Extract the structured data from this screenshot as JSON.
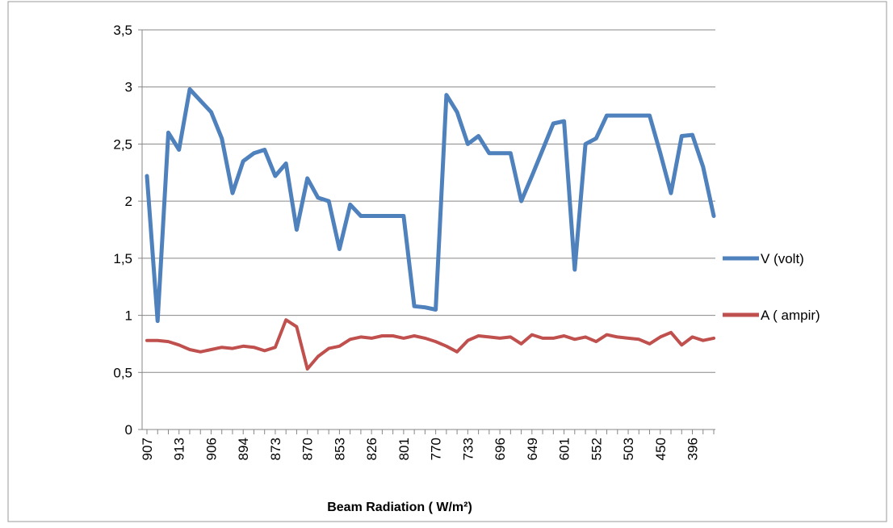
{
  "chart_data": {
    "type": "line",
    "x_label": "Beam Radiation ( W/m²)",
    "categories": [
      "907",
      null,
      null,
      "913",
      null,
      null,
      "906",
      null,
      null,
      "894",
      null,
      null,
      "873",
      null,
      null,
      "870",
      null,
      null,
      "853",
      null,
      null,
      "826",
      null,
      null,
      "801",
      null,
      null,
      "770",
      null,
      null,
      "733",
      null,
      null,
      "696",
      null,
      null,
      "649",
      null,
      null,
      "601",
      null,
      null,
      "552",
      null,
      null,
      "503",
      null,
      null,
      "450",
      null,
      null,
      "396",
      null,
      null
    ],
    "series": [
      {
        "name": "V (volt)",
        "color": "#4f81bd",
        "values": [
          2.22,
          0.95,
          2.6,
          2.45,
          2.98,
          2.88,
          2.78,
          2.55,
          2.07,
          2.35,
          2.42,
          2.45,
          2.22,
          2.33,
          1.75,
          2.2,
          2.03,
          2.0,
          1.58,
          1.97,
          1.87,
          1.87,
          1.87,
          1.87,
          1.87,
          1.08,
          1.07,
          1.05,
          2.93,
          2.78,
          2.5,
          2.57,
          2.42,
          2.42,
          2.42,
          2.0,
          2.22,
          2.45,
          2.68,
          2.7,
          1.4,
          2.5,
          2.55,
          2.75,
          2.75,
          2.75,
          2.75,
          2.75,
          2.42,
          2.07,
          2.57,
          2.58,
          2.3,
          1.87
        ]
      },
      {
        "name": "A ( ampir)",
        "color": "#c0504d",
        "values": [
          0.78,
          0.78,
          0.77,
          0.74,
          0.7,
          0.68,
          0.7,
          0.72,
          0.71,
          0.73,
          0.72,
          0.69,
          0.72,
          0.96,
          0.9,
          0.53,
          0.64,
          0.71,
          0.73,
          0.79,
          0.81,
          0.8,
          0.82,
          0.82,
          0.8,
          0.82,
          0.8,
          0.77,
          0.73,
          0.68,
          0.78,
          0.82,
          0.81,
          0.8,
          0.81,
          0.75,
          0.83,
          0.8,
          0.8,
          0.82,
          0.79,
          0.81,
          0.77,
          0.83,
          0.81,
          0.8,
          0.79,
          0.75,
          0.81,
          0.85,
          0.74,
          0.81,
          0.78,
          0.8
        ]
      }
    ],
    "ylim": [
      0,
      3.5
    ],
    "yticks": [
      0,
      {
        "value": 0.5,
        "label": "0,5"
      },
      1,
      {
        "value": 1.5,
        "label": "1,5"
      },
      2,
      {
        "value": 2.5,
        "label": "2,5"
      },
      3,
      {
        "value": 3.5,
        "label": "3,5"
      }
    ],
    "grid": true,
    "legend": "right"
  }
}
